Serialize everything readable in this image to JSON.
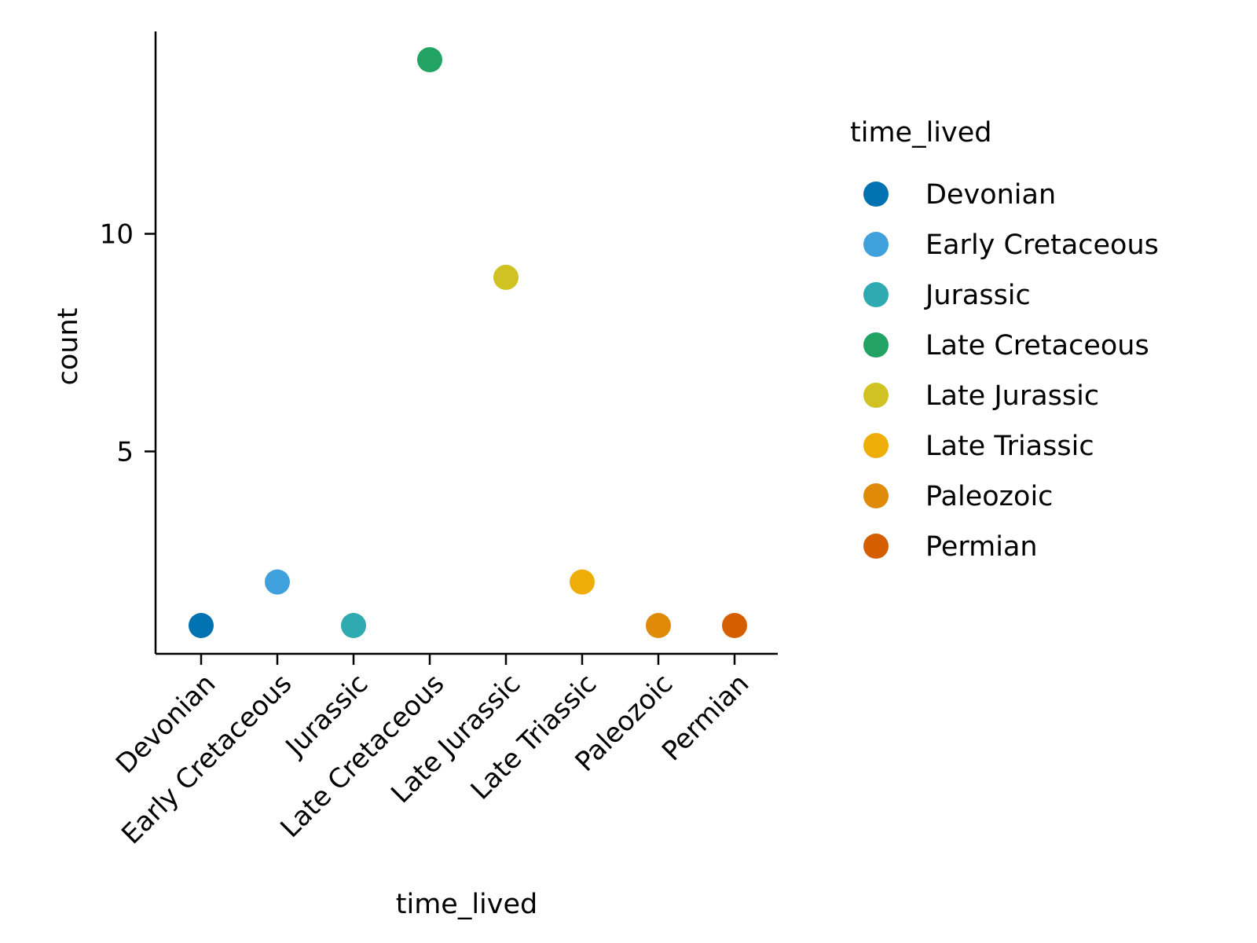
{
  "chart_data": {
    "type": "scatter",
    "title": "",
    "xlabel": "time_lived",
    "ylabel": "count",
    "categories": [
      "Devonian",
      "Early Cretaceous",
      "Jurassic",
      "Late Cretaceous",
      "Late Jurassic",
      "Late Triassic",
      "Paleozoic",
      "Permian"
    ],
    "values": [
      1,
      2,
      1,
      14,
      9,
      2,
      1,
      1
    ],
    "colors": [
      "#0072B2",
      "#3FA0DC",
      "#2FAAB1",
      "#22A363",
      "#CFC222",
      "#EEAE07",
      "#E08A0A",
      "#D55E00"
    ],
    "ylim": [
      0.35,
      14.65
    ],
    "yticks": [
      5,
      10
    ],
    "grid": false,
    "legend": {
      "title": "time_lived",
      "placement": "right",
      "entries": [
        "Devonian",
        "Early Cretaceous",
        "Jurassic",
        "Late Cretaceous",
        "Late Jurassic",
        "Late Triassic",
        "Paleozoic",
        "Permian"
      ]
    }
  }
}
